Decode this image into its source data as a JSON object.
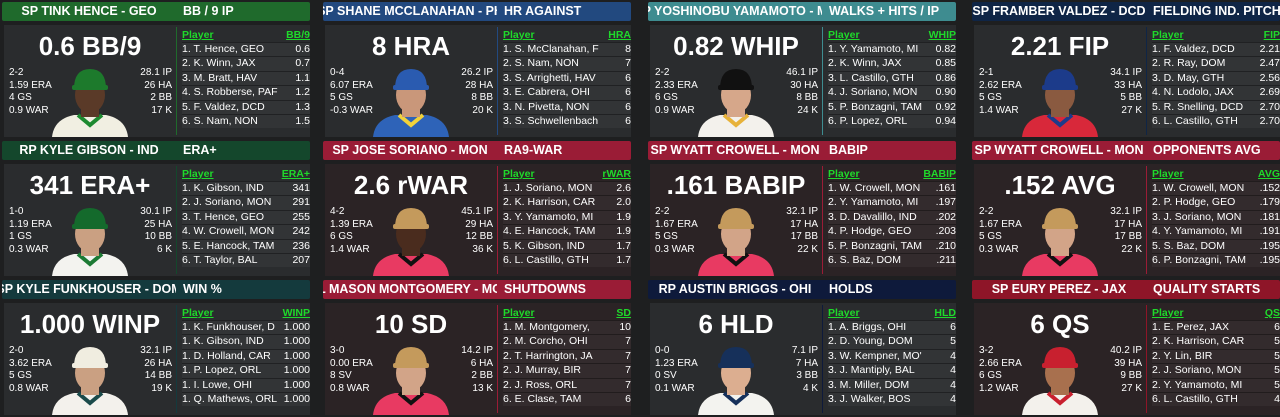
{
  "table_player_header": "Player",
  "cards": [
    {
      "header_name": "SP TINK HENCE - GEO",
      "header_stat": "BB / 9 IP",
      "headline": "0.6 BB/9",
      "col": "BB/9",
      "left_stats": [
        "2-2",
        "1.59 ERA",
        "4 GS",
        "0.9 WAR"
      ],
      "right_stats": [
        "28.1 IP",
        "26 HA",
        "2 BB",
        "17 K"
      ],
      "rows": [
        [
          "1. T. Hence, GEO",
          "0.6"
        ],
        [
          "2. K. Winn, JAX",
          "0.7"
        ],
        [
          "3. M. Bratt, HAV",
          "1.1"
        ],
        [
          "4. S. Robberse, PAF",
          "1.2"
        ],
        [
          "5. F. Valdez, DCD",
          "1.3"
        ],
        [
          "6. S. Nam, NON",
          "1.5"
        ]
      ],
      "colors": {
        "header": "#1f6a2c",
        "body": "#2a2c2e",
        "cap": "#1d7a2c",
        "jersey": "#f1efe2",
        "trim": "#1d8a30",
        "skin": "#5a3a28"
      }
    },
    {
      "header_name": "SP SHANE MCCLANAHAN - PH",
      "header_stat": "HR AGAINST",
      "headline": "8 HRA",
      "col": "HRA",
      "left_stats": [
        "0-4",
        "6.07 ERA",
        "5 GS",
        "-0.3 WAR"
      ],
      "right_stats": [
        "26.2 IP",
        "28 HA",
        "8 BB",
        "20 K"
      ],
      "rows": [
        [
          "1. S. McClanahan, F",
          "8"
        ],
        [
          "2. S. Nam, NON",
          "7"
        ],
        [
          "3. S. Arrighetti, HAV",
          "6"
        ],
        [
          "3. E. Cabrera, OHI",
          "6"
        ],
        [
          "3. N. Pivetta, NON",
          "6"
        ],
        [
          "3. S. Schwellenbach",
          "6"
        ]
      ],
      "colors": {
        "header": "#22497f",
        "body": "#2a2c2e",
        "cap": "#2a5bb0",
        "jersey": "#2e63b8",
        "trim": "#f1d23a",
        "skin": "#c9977a"
      }
    },
    {
      "header_name": "P YOSHINOBU YAMAMOTO - M",
      "header_stat": "WALKS + HITS / IP",
      "headline": "0.82 WHIP",
      "col": "WHIP",
      "left_stats": [
        "2-2",
        "2.33 ERA",
        "6 GS",
        "0.9 WAR"
      ],
      "right_stats": [
        "46.1 IP",
        "30 HA",
        "8 BB",
        "24 K"
      ],
      "rows": [
        [
          "1. Y. Yamamoto, MI",
          "0.82"
        ],
        [
          "2. K. Winn, JAX",
          "0.85"
        ],
        [
          "3. L. Castillo, GTH",
          "0.86"
        ],
        [
          "4. J. Soriano, MON",
          "0.90"
        ],
        [
          "5. P. Bonzagni, TAM",
          "0.92"
        ],
        [
          "6. P. Lopez, ORL",
          "0.94"
        ]
      ],
      "colors": {
        "header": "#3e8c90",
        "body": "#2a2c2e",
        "cap": "#111111",
        "jersey": "#f3f1ec",
        "trim": "#e7b23a",
        "skin": "#d6a78a"
      }
    },
    {
      "header_name": "SP FRAMBER VALDEZ - DCD",
      "header_stat": "FIELDING IND. PITCHING",
      "headline": "2.21 FIP",
      "col": "FIP",
      "left_stats": [
        "2-1",
        "2.62 ERA",
        "5 GS",
        "1.4 WAR"
      ],
      "right_stats": [
        "34.1 IP",
        "33 HA",
        "5 BB",
        "27 K"
      ],
      "rows": [
        [
          "1. F. Valdez, DCD",
          "2.21"
        ],
        [
          "2. R. Ray, DOM",
          "2.47"
        ],
        [
          "3. D. May, GTH",
          "2.56"
        ],
        [
          "4. N. Lodolo, JAX",
          "2.69"
        ],
        [
          "5. R. Snelling, DCD",
          "2.70"
        ],
        [
          "6. L. Castillo, GTH",
          "2.70"
        ]
      ],
      "colors": {
        "header": "#0f2546",
        "body": "#2a2c2e",
        "cap": "#1c3b8a",
        "jersey": "#d8283a",
        "trim": "#1c3b8a",
        "skin": "#8a5a40"
      }
    },
    {
      "header_name": "RP KYLE GIBSON - IND",
      "header_stat": "ERA+",
      "headline": "341 ERA+",
      "col": "ERA+",
      "left_stats": [
        "1-0",
        "1.19 ERA",
        "1 GS",
        "0.3 WAR"
      ],
      "right_stats": [
        "30.1 IP",
        "25 HA",
        "10 BB",
        "6 K"
      ],
      "rows": [
        [
          "1. K. Gibson, IND",
          "341"
        ],
        [
          "2. J. Soriano, MON",
          "291"
        ],
        [
          "3. T. Hence, GEO",
          "255"
        ],
        [
          "4. W. Crowell, MON",
          "242"
        ],
        [
          "5. E. Hancock, TAM",
          "236"
        ],
        [
          "6. T. Taylor, BAL",
          "207"
        ]
      ],
      "colors": {
        "header": "#14472c",
        "body": "#2a2c2e",
        "cap": "#146a2c",
        "jersey": "#f3f3ef",
        "trim": "#1c7a34",
        "skin": "#caa082"
      }
    },
    {
      "header_name": "SP JOSE SORIANO - MON",
      "header_stat": "RA9-WAR",
      "headline": "2.6 rWAR",
      "col": "rWAR",
      "left_stats": [
        "4-2",
        "1.39 ERA",
        "6 GS",
        "1.4 WAR"
      ],
      "right_stats": [
        "45.1 IP",
        "29 HA",
        "12 BB",
        "36 K"
      ],
      "rows": [
        [
          "1. J. Soriano, MON",
          "2.6"
        ],
        [
          "2. K. Harrison, CAR",
          "2.0"
        ],
        [
          "3. Y. Yamamoto, MI",
          "1.9"
        ],
        [
          "4. E. Hancock, TAM",
          "1.9"
        ],
        [
          "5. K. Gibson, IND",
          "1.7"
        ],
        [
          "6. L. Castillo, GTH",
          "1.7"
        ]
      ],
      "colors": {
        "header": "#9a1c36",
        "body": "#2b2325",
        "cap": "#c49a5c",
        "jersey": "#e83a62",
        "trim": "#111111",
        "skin": "#4a2c1e"
      }
    },
    {
      "header_name": "SP WYATT CROWELL - MON",
      "header_stat": "BABIP",
      "headline": ".161 BABIP",
      "col": "BABIP",
      "left_stats": [
        "2-2",
        "1.67 ERA",
        "5 GS",
        "0.3 WAR"
      ],
      "right_stats": [
        "32.1 IP",
        "17 HA",
        "17 BB",
        "22 K"
      ],
      "rows": [
        [
          "1. W. Crowell, MON",
          ".161"
        ],
        [
          "2. Y. Yamamoto, MI",
          ".197"
        ],
        [
          "3. D. Davalillo, IND",
          ".202"
        ],
        [
          "4. P. Hodge, GEO",
          ".203"
        ],
        [
          "5. P. Bonzagni, TAM",
          ".210"
        ],
        [
          "6. S. Baz, DOM",
          ".211"
        ]
      ],
      "colors": {
        "header": "#9a1c36",
        "body": "#2b2325",
        "cap": "#c49a5c",
        "jersey": "#e83a62",
        "trim": "#111111",
        "skin": "#d2a488"
      }
    },
    {
      "header_name": "SP WYATT CROWELL - MON",
      "header_stat": "OPPONENTS AVG",
      "headline": ".152 AVG",
      "col": "AVG",
      "left_stats": [
        "2-2",
        "1.67 ERA",
        "5 GS",
        "0.3 WAR"
      ],
      "right_stats": [
        "32.1 IP",
        "17 HA",
        "17 BB",
        "22 K"
      ],
      "rows": [
        [
          "1. W. Crowell, MON",
          ".152"
        ],
        [
          "2. P. Hodge, GEO",
          ".179"
        ],
        [
          "3. J. Soriano, MON",
          ".181"
        ],
        [
          "4. Y. Yamamoto, MI",
          ".191"
        ],
        [
          "5. S. Baz, DOM",
          ".195"
        ],
        [
          "6. P. Bonzagni, TAM",
          ".195"
        ]
      ],
      "colors": {
        "header": "#9a1c36",
        "body": "#2b2325",
        "cap": "#c49a5c",
        "jersey": "#e83a62",
        "trim": "#111111",
        "skin": "#d2a488"
      }
    },
    {
      "header_name": "SP KYLE FUNKHOUSER - DOM",
      "header_stat": "WIN %",
      "headline": "1.000 WINP",
      "col": "WINP",
      "left_stats": [
        "2-0",
        "3.62 ERA",
        "5 GS",
        "0.8 WAR"
      ],
      "right_stats": [
        "32.1 IP",
        "26 HA",
        "14 BB",
        "19 K"
      ],
      "rows": [
        [
          "1. K. Funkhouser, D",
          "1.000"
        ],
        [
          "1. K. Gibson, IND",
          "1.000"
        ],
        [
          "1. D. Holland, CAR",
          "1.000"
        ],
        [
          "1. P. Lopez, ORL",
          "1.000"
        ],
        [
          "1. I. Lowe, OHI",
          "1.000"
        ],
        [
          "1. Q. Mathews, ORL",
          "1.000"
        ]
      ],
      "colors": {
        "header": "#143a3d",
        "body": "#2a2c2e",
        "cap": "#f0ede0",
        "jersey": "#f3f1ec",
        "trim": "#1a4a4a",
        "skin": "#caa082"
      }
    },
    {
      "header_name": "L MASON MONTGOMERY - MO",
      "header_stat": "SHUTDOWNS",
      "headline": "10 SD",
      "col": "SD",
      "left_stats": [
        "3-0",
        "0.00 ERA",
        "8 SV",
        "0.8 WAR"
      ],
      "right_stats": [
        "14.2 IP",
        "6 HA",
        "2 BB",
        "13 K"
      ],
      "rows": [
        [
          "1. M. Montgomery,",
          "10"
        ],
        [
          "2. M. Corcho, OHI",
          "7"
        ],
        [
          "2. T. Harrington, JA",
          "7"
        ],
        [
          "2. J. Murray, BIR",
          "7"
        ],
        [
          "2. J. Ross, ORL",
          "7"
        ],
        [
          "6. E. Clase, TAM",
          "6"
        ]
      ],
      "colors": {
        "header": "#9a1c36",
        "body": "#2b2325",
        "cap": "#c49a5c",
        "jersey": "#e83a62",
        "trim": "#111111",
        "skin": "#d2a488"
      }
    },
    {
      "header_name": "RP AUSTIN BRIGGS - OHI",
      "header_stat": "HOLDS",
      "headline": "6 HLD",
      "col": "HLD",
      "left_stats": [
        "0-0",
        "1.23 ERA",
        "0 SV",
        "0.1 WAR"
      ],
      "right_stats": [
        "7.1 IP",
        "7 HA",
        "3 BB",
        "4 K"
      ],
      "rows": [
        [
          "1. A. Briggs, OHI",
          "6"
        ],
        [
          "2. D. Young, DOM",
          "5"
        ],
        [
          "3. W. Kempner, MO'",
          "4"
        ],
        [
          "3. J. Mantiply, BAL",
          "4"
        ],
        [
          "3. M. Miller, DOM",
          "4"
        ],
        [
          "3. J. Walker, BOS",
          "4"
        ]
      ],
      "colors": {
        "header": "#0e1a3b",
        "body": "#2a2c2e",
        "cap": "#16305a",
        "jersey": "#f3f3ef",
        "trim": "#16305a",
        "skin": "#dcae90"
      }
    },
    {
      "header_name": "SP EURY PEREZ - JAX",
      "header_stat": "QUALITY STARTS",
      "headline": "6 QS",
      "col": "QS",
      "left_stats": [
        "3-2",
        "2.66 ERA",
        "6 GS",
        "1.2 WAR"
      ],
      "right_stats": [
        "40.2 IP",
        "39 HA",
        "9 BB",
        "27 K"
      ],
      "rows": [
        [
          "1. E. Perez, JAX",
          "6"
        ],
        [
          "2. K. Harrison, CAR",
          "5"
        ],
        [
          "2. Y. Lin, BIR",
          "5"
        ],
        [
          "2. J. Soriano, MON",
          "5"
        ],
        [
          "2. Y. Yamamoto, MI",
          "5"
        ],
        [
          "6. L. Castillo, GTH",
          "4"
        ]
      ],
      "colors": {
        "header": "#8e1528",
        "body": "#2b2325",
        "cap": "#c8202f",
        "jersey": "#f3f1ec",
        "trim": "#c8202f",
        "skin": "#a8704e"
      }
    }
  ]
}
